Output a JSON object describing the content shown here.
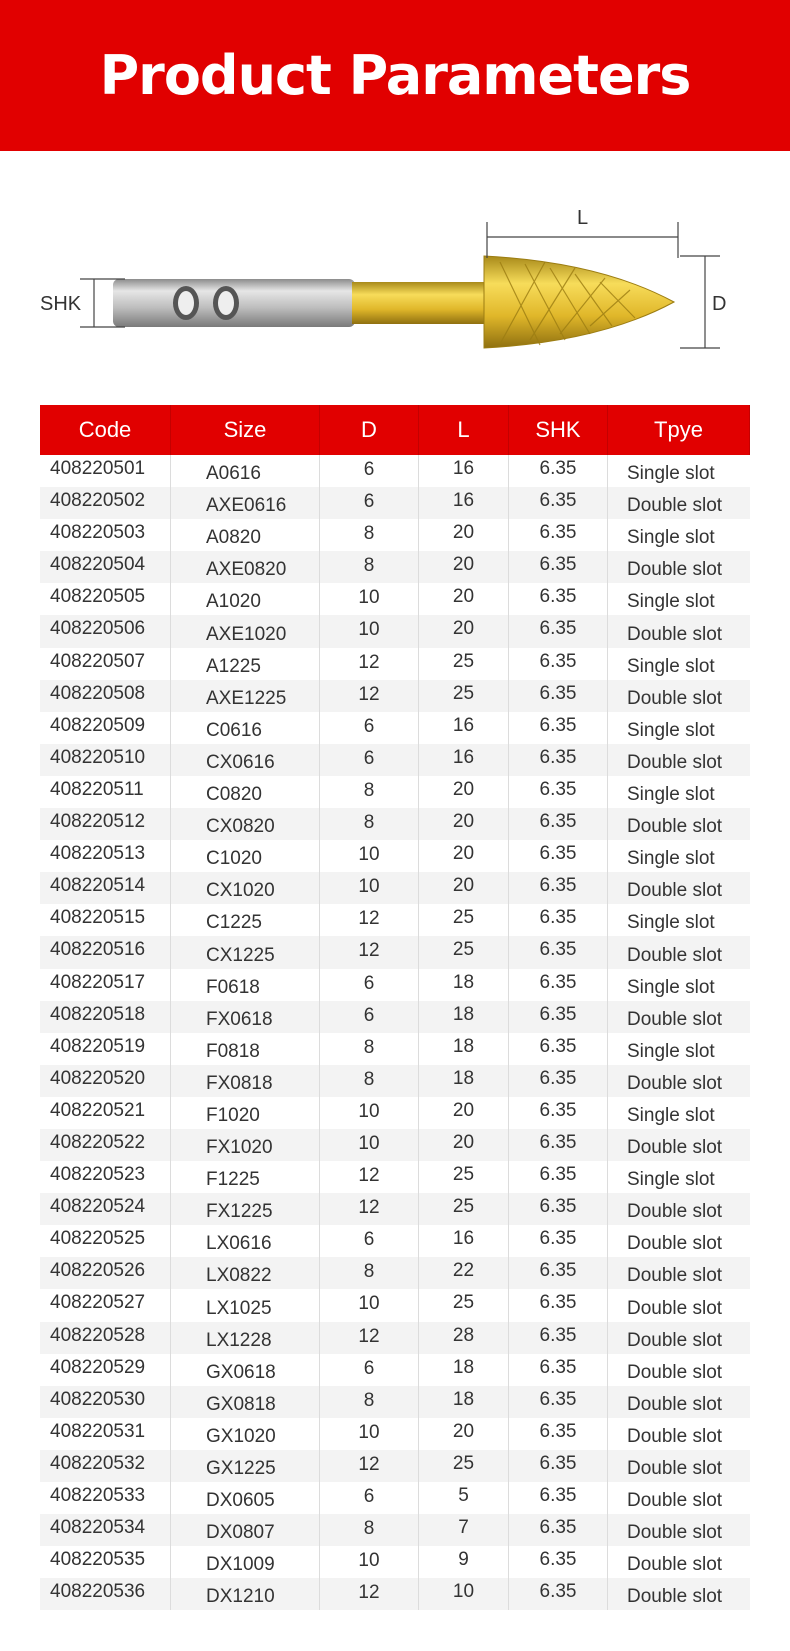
{
  "banner": {
    "title": "Product Parameters",
    "color": "#e10000"
  },
  "diagram": {
    "shk_label": "SHK",
    "l_label": "L",
    "d_label": "D"
  },
  "table": {
    "headers": [
      "Code",
      "Size",
      "D",
      "L",
      "SHK",
      "Tpye"
    ],
    "rows": [
      [
        "408220501",
        "A0616",
        "6",
        "16",
        "6.35",
        "Single slot"
      ],
      [
        "408220502",
        "AXE0616",
        "6",
        "16",
        "6.35",
        "Double slot"
      ],
      [
        "408220503",
        "A0820",
        "8",
        "20",
        "6.35",
        "Single slot"
      ],
      [
        "408220504",
        "AXE0820",
        "8",
        "20",
        "6.35",
        "Double slot"
      ],
      [
        "408220505",
        "A1020",
        "10",
        "20",
        "6.35",
        "Single slot"
      ],
      [
        "408220506",
        "AXE1020",
        "10",
        "20",
        "6.35",
        "Double slot"
      ],
      [
        "408220507",
        "A1225",
        "12",
        "25",
        "6.35",
        "Single slot"
      ],
      [
        "408220508",
        "AXE1225",
        "12",
        "25",
        "6.35",
        "Double slot"
      ],
      [
        "408220509",
        "C0616",
        "6",
        "16",
        "6.35",
        "Single slot"
      ],
      [
        "408220510",
        "CX0616",
        "6",
        "16",
        "6.35",
        "Double slot"
      ],
      [
        "408220511",
        "C0820",
        "8",
        "20",
        "6.35",
        "Single slot"
      ],
      [
        "408220512",
        "CX0820",
        "8",
        "20",
        "6.35",
        "Double slot"
      ],
      [
        "408220513",
        "C1020",
        "10",
        "20",
        "6.35",
        "Single slot"
      ],
      [
        "408220514",
        "CX1020",
        "10",
        "20",
        "6.35",
        "Double slot"
      ],
      [
        "408220515",
        "C1225",
        "12",
        "25",
        "6.35",
        "Single slot"
      ],
      [
        "408220516",
        "CX1225",
        "12",
        "25",
        "6.35",
        "Double slot"
      ],
      [
        "408220517",
        "F0618",
        "6",
        "18",
        "6.35",
        "Single slot"
      ],
      [
        "408220518",
        "FX0618",
        "6",
        "18",
        "6.35",
        "Double slot"
      ],
      [
        "408220519",
        "F0818",
        "8",
        "18",
        "6.35",
        "Single slot"
      ],
      [
        "408220520",
        "FX0818",
        "8",
        "18",
        "6.35",
        "Double slot"
      ],
      [
        "408220521",
        "F1020",
        "10",
        "20",
        "6.35",
        "Single slot"
      ],
      [
        "408220522",
        "FX1020",
        "10",
        "20",
        "6.35",
        "Double slot"
      ],
      [
        "408220523",
        "F1225",
        "12",
        "25",
        "6.35",
        "Single slot"
      ],
      [
        "408220524",
        "FX1225",
        "12",
        "25",
        "6.35",
        "Double slot"
      ],
      [
        "408220525",
        "LX0616",
        "6",
        "16",
        "6.35",
        "Double slot"
      ],
      [
        "408220526",
        "LX0822",
        "8",
        "22",
        "6.35",
        "Double slot"
      ],
      [
        "408220527",
        "LX1025",
        "10",
        "25",
        "6.35",
        "Double slot"
      ],
      [
        "408220528",
        "LX1228",
        "12",
        "28",
        "6.35",
        "Double slot"
      ],
      [
        "408220529",
        "GX0618",
        "6",
        "18",
        "6.35",
        "Double slot"
      ],
      [
        "408220530",
        "GX0818",
        "8",
        "18",
        "6.35",
        "Double slot"
      ],
      [
        "408220531",
        "GX1020",
        "10",
        "20",
        "6.35",
        "Double slot"
      ],
      [
        "408220532",
        "GX1225",
        "12",
        "25",
        "6.35",
        "Double slot"
      ],
      [
        "408220533",
        "DX0605",
        "6",
        "5",
        "6.35",
        "Double slot"
      ],
      [
        "408220534",
        "DX0807",
        "8",
        "7",
        "6.35",
        "Double slot"
      ],
      [
        "408220535",
        "DX1009",
        "10",
        "9",
        "6.35",
        "Double slot"
      ],
      [
        "408220536",
        "DX1210",
        "12",
        "10",
        "6.35",
        "Double slot"
      ]
    ]
  }
}
